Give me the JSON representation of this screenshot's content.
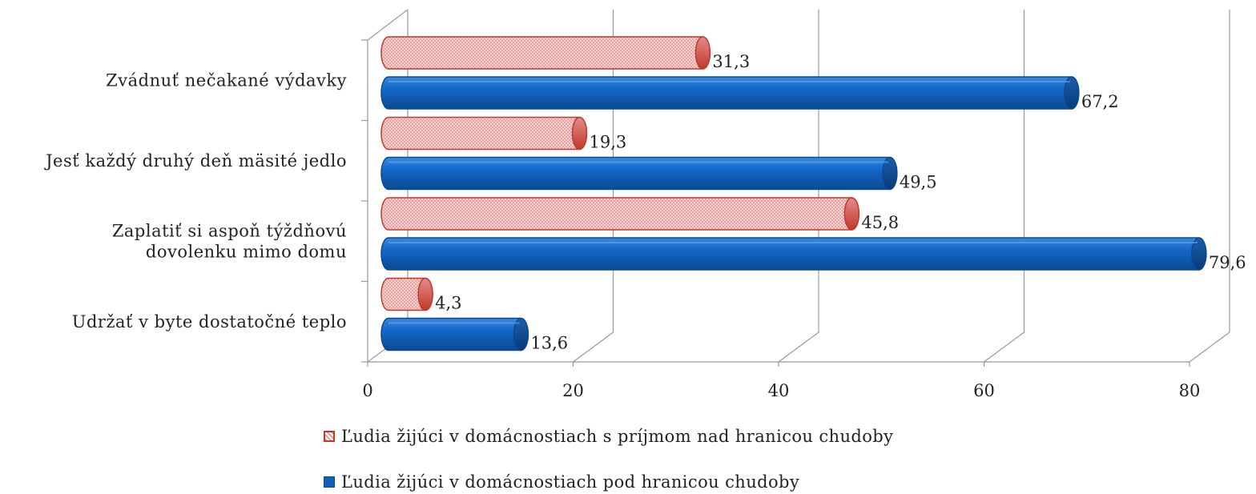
{
  "chart_data": {
    "type": "bar",
    "orientation": "horizontal",
    "three_d": true,
    "categories": [
      "Zvádnuť nečakané výdavky",
      "Jesť každý druhý deň mäsité jedlo",
      "Zaplatiť si aspoň týždňovú dovolenku mimo domu",
      "Udržať v byte dostatočné teplo"
    ],
    "category_lines": [
      [
        "Zvádnuť nečakané výdavky"
      ],
      [
        "Jesť každý druhý deň mäsité jedlo"
      ],
      [
        "Zaplatiť si aspoň týždňovú",
        "dovolenku mimo domu"
      ],
      [
        "Udržať v byte dostatočné teplo"
      ]
    ],
    "series": [
      {
        "name": "Ľudia žijúci v domácnostiach s príjmom nad hranicou chudoby",
        "values": [
          31.3,
          19.3,
          45.8,
          4.3
        ],
        "labels": [
          "31,3",
          "19,3",
          "45,8",
          "4,3"
        ],
        "color": "#e99a9a",
        "edge_color": "#c0392b"
      },
      {
        "name": "Ľudia žijúci v domácnostiach pod hranicou chudoby",
        "values": [
          67.2,
          49.5,
          79.6,
          13.6
        ],
        "labels": [
          "67,2",
          "49,5",
          "79,6",
          "13,6"
        ],
        "color": "#0f5fb8",
        "edge_color": "#0a4a92"
      }
    ],
    "xlim": [
      0,
      80
    ],
    "ticks": [
      0,
      20,
      40,
      60,
      80
    ],
    "grid": true,
    "legend_position": "bottom"
  }
}
